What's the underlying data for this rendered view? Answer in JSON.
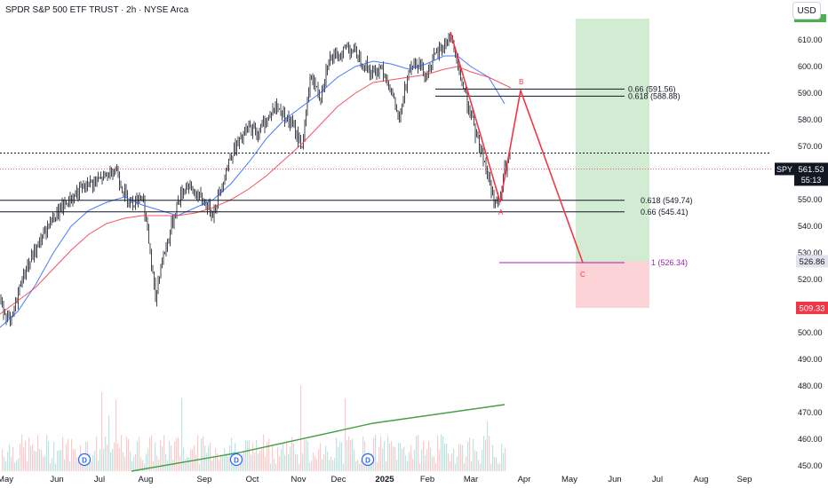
{
  "header": {
    "title": "SPDR S&P 500 ETF TRUST · 2h · NYSE Arca",
    "currency_button": "USD"
  },
  "chart_data": {
    "type": "candlestick",
    "symbol": "SPY",
    "y_axis": {
      "ticks": [
        "610.00",
        "600.00",
        "590.00",
        "580.00",
        "570.00",
        "560.00",
        "550.00",
        "540.00",
        "530.00",
        "520.00",
        "510.00",
        "500.00",
        "490.00",
        "480.00",
        "470.00",
        "460.00",
        "450.00"
      ],
      "range": [
        448,
        618
      ]
    },
    "x_axis": {
      "ticks": [
        "May",
        "Jun",
        "Jul",
        "Aug",
        "Sep",
        "Oct",
        "Nov",
        "Dec",
        "2025",
        "Feb",
        "Mar",
        "Apr",
        "May",
        "Jun",
        "Jul",
        "Aug",
        "Sep"
      ]
    },
    "price_path": [
      [
        0,
        512
      ],
      [
        12,
        503
      ],
      [
        25,
        521
      ],
      [
        40,
        531
      ],
      [
        55,
        541
      ],
      [
        70,
        547
      ],
      [
        85,
        552
      ],
      [
        100,
        556
      ],
      [
        110,
        557
      ],
      [
        120,
        559
      ],
      [
        130,
        562
      ],
      [
        140,
        552
      ],
      [
        150,
        549
      ],
      [
        160,
        552
      ],
      [
        165,
        541
      ],
      [
        170,
        527
      ],
      [
        175,
        512
      ],
      [
        180,
        524
      ],
      [
        190,
        536
      ],
      [
        200,
        549
      ],
      [
        210,
        556
      ],
      [
        220,
        552
      ],
      [
        230,
        549
      ],
      [
        240,
        545
      ],
      [
        250,
        556
      ],
      [
        260,
        567
      ],
      [
        270,
        572
      ],
      [
        280,
        577
      ],
      [
        290,
        575
      ],
      [
        300,
        580
      ],
      [
        310,
        585
      ],
      [
        320,
        582
      ],
      [
        330,
        577
      ],
      [
        340,
        570
      ],
      [
        350,
        597
      ],
      [
        360,
        588
      ],
      [
        370,
        603
      ],
      [
        380,
        603
      ],
      [
        390,
        608
      ],
      [
        400,
        605
      ],
      [
        410,
        601
      ],
      [
        420,
        597
      ],
      [
        430,
        600
      ],
      [
        440,
        591
      ],
      [
        450,
        579
      ],
      [
        460,
        600
      ],
      [
        470,
        602
      ],
      [
        480,
        597
      ],
      [
        490,
        604
      ],
      [
        500,
        608
      ],
      [
        507,
        612
      ],
      [
        515,
        600
      ],
      [
        525,
        588
      ],
      [
        535,
        575
      ],
      [
        545,
        565
      ],
      [
        555,
        551
      ],
      [
        562,
        548
      ],
      [
        568,
        561
      ],
      [
        575,
        566
      ]
    ],
    "moving_averages": [
      {
        "color": "#2962ff",
        "points": [
          [
            0,
            502
          ],
          [
            20,
            508
          ],
          [
            40,
            518
          ],
          [
            60,
            530
          ],
          [
            80,
            540
          ],
          [
            100,
            546
          ],
          [
            120,
            549
          ],
          [
            140,
            551
          ],
          [
            160,
            548
          ],
          [
            180,
            546
          ],
          [
            200,
            544
          ],
          [
            220,
            547
          ],
          [
            240,
            550
          ],
          [
            260,
            556
          ],
          [
            280,
            564
          ],
          [
            300,
            573
          ],
          [
            320,
            580
          ],
          [
            340,
            585
          ],
          [
            360,
            590
          ],
          [
            380,
            596
          ],
          [
            400,
            600
          ],
          [
            420,
            602
          ],
          [
            440,
            601
          ],
          [
            460,
            599
          ],
          [
            480,
            601
          ],
          [
            500,
            604
          ],
          [
            515,
            604
          ],
          [
            530,
            600
          ],
          [
            550,
            596
          ],
          [
            568,
            586
          ]
        ]
      },
      {
        "color": "#f23645",
        "points": [
          [
            0,
            507
          ],
          [
            20,
            512
          ],
          [
            40,
            517
          ],
          [
            60,
            524
          ],
          [
            80,
            531
          ],
          [
            100,
            537
          ],
          [
            120,
            541
          ],
          [
            140,
            543
          ],
          [
            160,
            544
          ],
          [
            180,
            544
          ],
          [
            200,
            544
          ],
          [
            220,
            545
          ],
          [
            240,
            547
          ],
          [
            260,
            550
          ],
          [
            280,
            554
          ],
          [
            300,
            559
          ],
          [
            320,
            565
          ],
          [
            340,
            571
          ],
          [
            360,
            578
          ],
          [
            380,
            585
          ],
          [
            400,
            590
          ],
          [
            420,
            594
          ],
          [
            440,
            595
          ],
          [
            460,
            596
          ],
          [
            480,
            597
          ],
          [
            500,
            599
          ],
          [
            515,
            600
          ],
          [
            530,
            598
          ],
          [
            550,
            596
          ],
          [
            575,
            592
          ]
        ]
      }
    ],
    "abc_pattern": {
      "points": [
        {
          "label": "",
          "x": 507,
          "y": 613
        },
        {
          "label": "A",
          "x": 563,
          "y": 549
        },
        {
          "label": "B",
          "x": 586,
          "y": 591
        },
        {
          "label": "C",
          "x": 656,
          "y": 526.34
        }
      ]
    },
    "fib_levels": [
      {
        "label": "0.66 (591.56)",
        "value": 591.56,
        "x_start": 490
      },
      {
        "label": "0.618 (588.88)",
        "value": 588.88,
        "x_start": 490
      },
      {
        "label": "0.618 (549.74)",
        "value": 549.74,
        "x_start": 0
      },
      {
        "label": "0.66 (545.41)",
        "value": 545.41,
        "x_start": 0
      },
      {
        "label": "1 (526.34)",
        "value": 526.34,
        "x_start": 562,
        "color": "#9c27b0"
      }
    ],
    "dotted_resistance": 567.5,
    "current_price_line": 561.53,
    "position_tool": {
      "target": 618,
      "entry": 526.86,
      "stop": 509.33,
      "x_range": [
        648,
        731
      ]
    },
    "price_labels": [
      {
        "text": "526.86",
        "value": 526.86,
        "bg": "#e0e3eb",
        "fg": "#131722"
      },
      {
        "text": "509.33",
        "value": 509.33,
        "bg": "#f23645",
        "fg": "#ffffff"
      }
    ],
    "last_price": {
      "symbol": "SPY",
      "value": "561.53",
      "countdown": "55:13"
    },
    "volume_trend": {
      "color": "#43a047",
      "points": [
        [
          148,
          448
        ],
        [
          270,
          455
        ],
        [
          420,
          466
        ],
        [
          568,
          473
        ]
      ]
    },
    "dividend_markers": [
      {
        "text": "D",
        "x": 95
      },
      {
        "text": "D",
        "x": 266
      },
      {
        "text": "D",
        "x": 414
      }
    ],
    "grid": false,
    "legend": "none"
  }
}
